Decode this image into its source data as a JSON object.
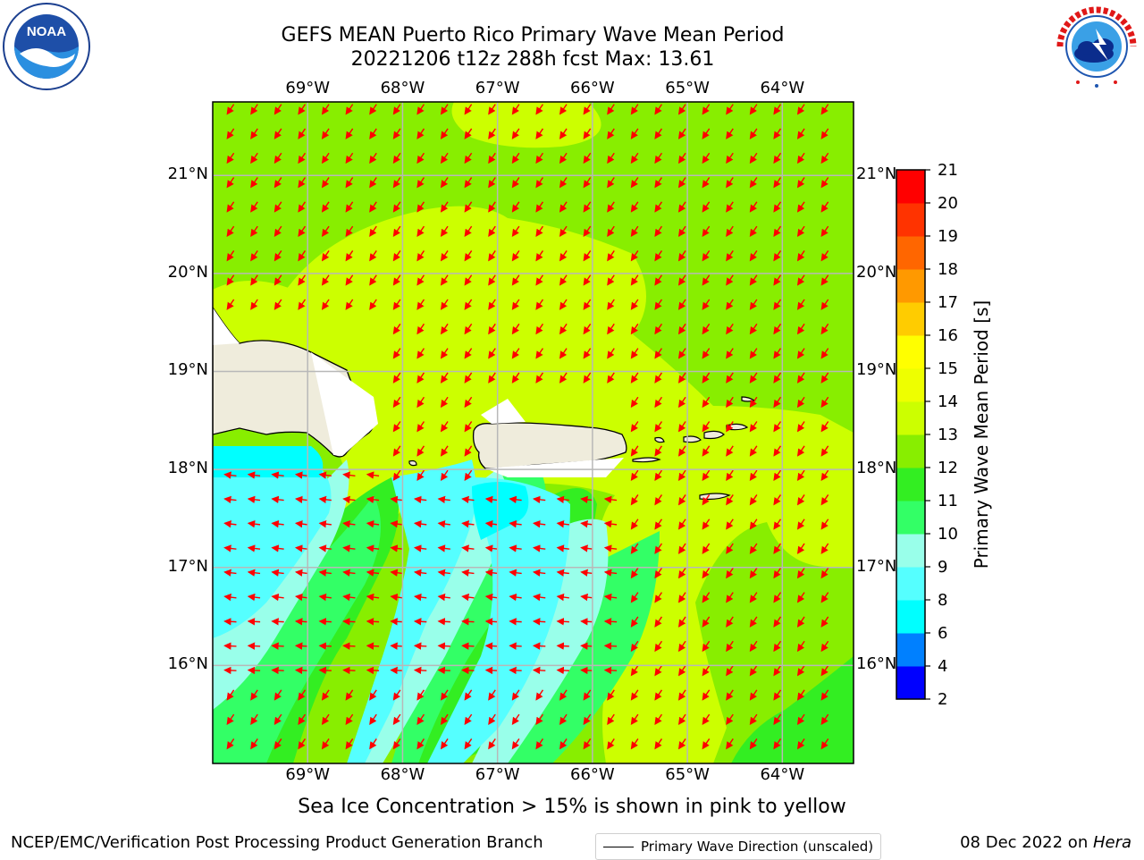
{
  "title": {
    "line1": "GEFS MEAN Puerto Rico Primary Wave Mean Period",
    "line2": "20221206 t12z 288h fcst   Max: 13.61"
  },
  "logos": {
    "left": {
      "icon": "noaa-logo",
      "text": "NOAA"
    },
    "right": {
      "icon": "nws-logo",
      "text": "NATIONAL WEATHER SERVICE"
    }
  },
  "map": {
    "lon_labels": [
      "69°W",
      "68°W",
      "67°W",
      "66°W",
      "65°W",
      "64°W"
    ],
    "lat_labels": [
      "21°N",
      "20°N",
      "19°N",
      "18°N",
      "17°N",
      "16°N"
    ],
    "extent": {
      "lon_min": -70.0,
      "lon_max": -63.25,
      "lat_min": 15.0,
      "lat_max": 21.75
    },
    "land_color": "#efecdc",
    "arrow_color": "#ff0000",
    "grid_color": "#b8b8b8",
    "legend_label": "Primary Wave Direction (unscaled)"
  },
  "colorbar": {
    "label": "Primary Wave Mean Period [s]",
    "ticks": [
      "2",
      "4",
      "6",
      "8",
      "9",
      "10",
      "11",
      "12",
      "13",
      "14",
      "15",
      "16",
      "17",
      "18",
      "19",
      "20",
      "21"
    ],
    "bins": [
      {
        "from": 2,
        "to": 4,
        "color": "#0000ff"
      },
      {
        "from": 4,
        "to": 6,
        "color": "#0080ff"
      },
      {
        "from": 6,
        "to": 8,
        "color": "#00ffff"
      },
      {
        "from": 8,
        "to": 9,
        "color": "#55ffff"
      },
      {
        "from": 9,
        "to": 10,
        "color": "#99ffea"
      },
      {
        "from": 10,
        "to": 11,
        "color": "#33ff66"
      },
      {
        "from": 11,
        "to": 12,
        "color": "#33ee22"
      },
      {
        "from": 12,
        "to": 13,
        "color": "#88ee00"
      },
      {
        "from": 13,
        "to": 14,
        "color": "#ccff00"
      },
      {
        "from": 14,
        "to": 15,
        "color": "#eeff00"
      },
      {
        "from": 15,
        "to": 16,
        "color": "#ffff00"
      },
      {
        "from": 16,
        "to": 17,
        "color": "#ffcc00"
      },
      {
        "from": 17,
        "to": 18,
        "color": "#ff9900"
      },
      {
        "from": 18,
        "to": 19,
        "color": "#ff6600"
      },
      {
        "from": 19,
        "to": 20,
        "color": "#ff3300"
      },
      {
        "from": 20,
        "to": 21,
        "color": "#ff0000"
      }
    ]
  },
  "notes": {
    "sea_ice": "Sea Ice Concentration > 15% is shown in pink to yellow",
    "footer_left": "NCEP/EMC/Verification Post Processing Product Generation Branch",
    "footer_right_date": "08 Dec 2022 on ",
    "footer_right_host": "Hera"
  }
}
